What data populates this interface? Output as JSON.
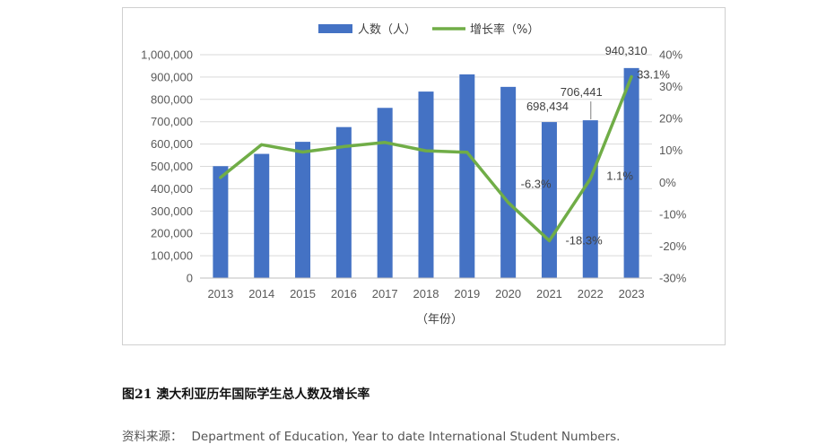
{
  "caption": "图21 澳大利亚历年国际学生总人数及增长率",
  "source": {
    "label": "资料来源：",
    "text": "Department of Education, Year to date International Student Numbers."
  },
  "colors": {
    "bar": "#4472C4",
    "line": "#70AD47",
    "grid": "#d9d9d9",
    "axis": "#bfbfbf"
  },
  "chart_data": {
    "type": "bar",
    "title": "",
    "xlabel": "（年份）",
    "ylabel": "",
    "legend_position": "top",
    "grid": true,
    "categories": [
      "2013",
      "2014",
      "2015",
      "2016",
      "2017",
      "2018",
      "2019",
      "2020",
      "2021",
      "2022",
      "2023"
    ],
    "ylim": [
      0,
      1000000
    ],
    "y_ticks": [
      "0",
      "100,000",
      "200,000",
      "300,000",
      "400,000",
      "500,000",
      "600,000",
      "700,000",
      "800,000",
      "900,000",
      "1,000,000"
    ],
    "y2lim": [
      -30,
      40
    ],
    "y2_ticks": [
      "-30%",
      "-20%",
      "-10%",
      "0%",
      "10%",
      "20%",
      "30%",
      "40%"
    ],
    "series": [
      {
        "name": "人数（人）",
        "type": "bar",
        "axis": "left",
        "values": [
          501000,
          556000,
          610000,
          676000,
          762000,
          835000,
          912000,
          856000,
          698434,
          706441,
          940310
        ]
      },
      {
        "name": "增长率（%）",
        "type": "line",
        "axis": "right",
        "values": [
          1.5,
          11.8,
          9.5,
          11.2,
          12.5,
          9.9,
          9.4,
          -6.3,
          -18.3,
          1.1,
          33.1
        ]
      }
    ],
    "annotations": [
      {
        "series": 0,
        "index": 8,
        "text": "698,434"
      },
      {
        "series": 0,
        "index": 9,
        "text": "706,441"
      },
      {
        "series": 0,
        "index": 10,
        "text": "940,310"
      },
      {
        "series": 1,
        "index": 7,
        "text": "-6.3%"
      },
      {
        "series": 1,
        "index": 8,
        "text": "-18.3%"
      },
      {
        "series": 1,
        "index": 9,
        "text": "1.1%"
      },
      {
        "series": 1,
        "index": 10,
        "text": "33.1%"
      }
    ]
  }
}
